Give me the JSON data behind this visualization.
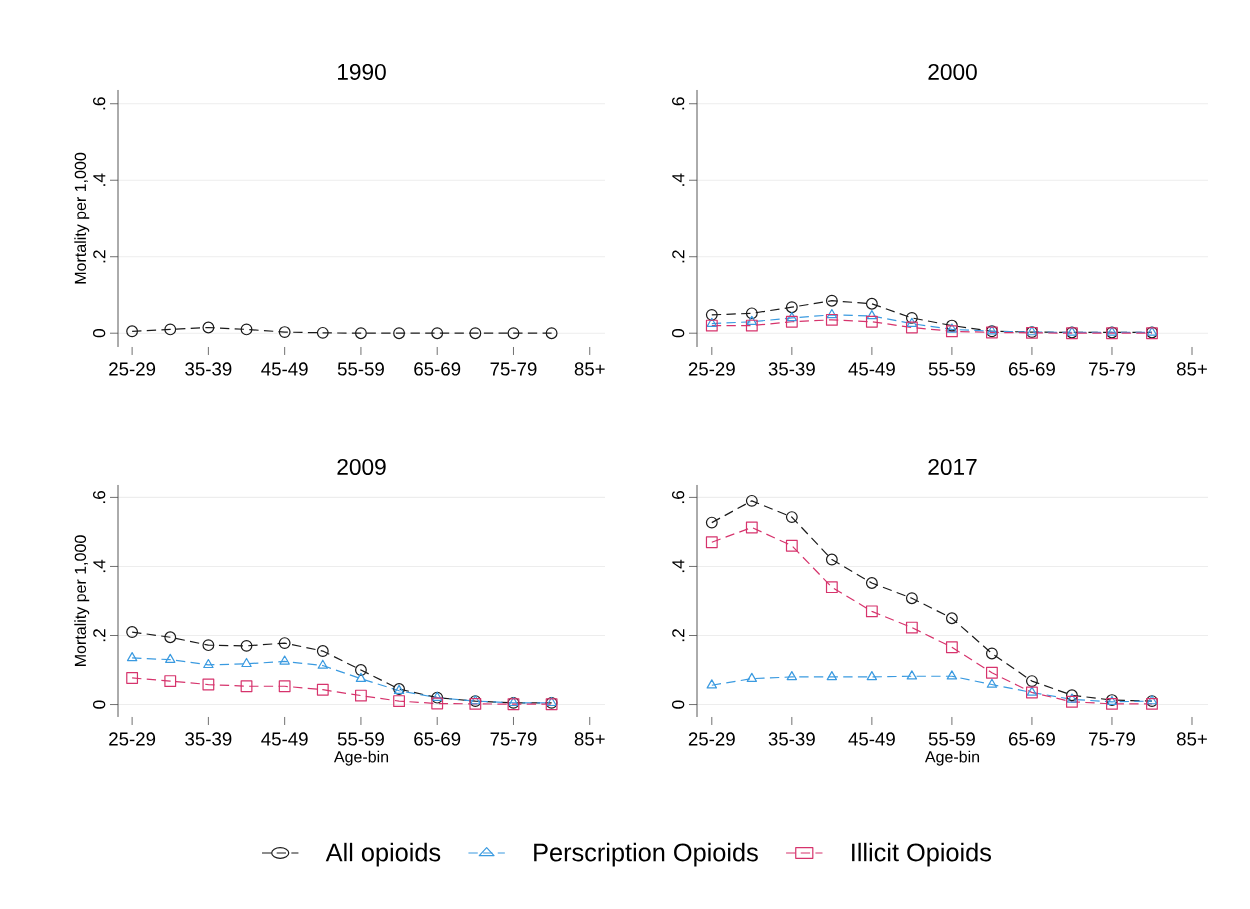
{
  "chart_data": [
    {
      "type": "line",
      "title": "1990",
      "ylabel": "Mortality per 1,000",
      "categories": [
        "25-29",
        null,
        "35-39",
        null,
        "45-49",
        null,
        "55-59",
        null,
        "65-69",
        null,
        "75-79",
        null,
        "85+"
      ],
      "ylim": [
        -0.036,
        0.636
      ],
      "yticks": [
        0,
        {
          "value": 0.2,
          "label": ".2"
        },
        {
          "value": 0.4,
          "label": ".4"
        },
        {
          "value": 0.6,
          "label": ".6"
        }
      ],
      "grid": "y",
      "line_style": "dashed",
      "series": [
        {
          "color": "#1a1a1a",
          "marker": "circle",
          "values": [
            0.005,
            0.01,
            0.015,
            0.01,
            0.003,
            0.001,
            0,
            0,
            0,
            0,
            0,
            0,
            null
          ]
        }
      ]
    },
    {
      "type": "line",
      "title": "2000",
      "categories": [
        "25-29",
        null,
        "35-39",
        null,
        "45-49",
        null,
        "55-59",
        null,
        "65-69",
        null,
        "75-79",
        null,
        "85+"
      ],
      "ylim": [
        -0.036,
        0.636
      ],
      "yticks": [
        0,
        {
          "value": 0.2,
          "label": ".2"
        },
        {
          "value": 0.4,
          "label": ".4"
        },
        {
          "value": 0.6,
          "label": ".6"
        }
      ],
      "grid": "y",
      "line_style": "dashed",
      "series": [
        {
          "color": "#1a1a1a",
          "marker": "circle",
          "values": [
            0.048,
            0.052,
            0.068,
            0.085,
            0.077,
            0.04,
            0.02,
            0.005,
            0.003,
            0.002,
            0.002,
            0.002,
            null
          ]
        },
        {
          "color": "#3a9ae0",
          "marker": "triangle",
          "values": [
            0.025,
            0.03,
            0.04,
            0.048,
            0.045,
            0.025,
            0.01,
            0.005,
            0.003,
            0.002,
            0.002,
            0.002,
            null
          ]
        },
        {
          "color": "#d6336c",
          "marker": "square",
          "values": [
            0.02,
            0.02,
            0.03,
            0.035,
            0.03,
            0.015,
            0.005,
            0.002,
            0.001,
            0,
            0,
            0,
            null
          ]
        }
      ]
    },
    {
      "type": "line",
      "title": "2009",
      "ylabel": "Mortality per 1,000",
      "xlabel": "Age-bin",
      "categories": [
        "25-29",
        null,
        "35-39",
        null,
        "45-49",
        null,
        "55-59",
        null,
        "65-69",
        null,
        "75-79",
        null,
        "85+"
      ],
      "ylim": [
        -0.036,
        0.636
      ],
      "yticks": [
        0,
        {
          "value": 0.2,
          "label": ".2"
        },
        {
          "value": 0.4,
          "label": ".4"
        },
        {
          "value": 0.6,
          "label": ".6"
        }
      ],
      "grid": "y",
      "line_style": "dashed",
      "series": [
        {
          "color": "#1a1a1a",
          "marker": "circle",
          "values": [
            0.21,
            0.195,
            0.172,
            0.17,
            0.178,
            0.155,
            0.1,
            0.045,
            0.02,
            0.01,
            0.005,
            0.005,
            null
          ]
        },
        {
          "color": "#3a9ae0",
          "marker": "triangle",
          "values": [
            0.135,
            0.13,
            0.115,
            0.118,
            0.125,
            0.113,
            0.075,
            0.04,
            0.02,
            0.01,
            0.005,
            0.005,
            null
          ]
        },
        {
          "color": "#d6336c",
          "marker": "square",
          "values": [
            0.077,
            0.068,
            0.058,
            0.053,
            0.053,
            0.043,
            0.026,
            0.01,
            0.003,
            0.002,
            0.001,
            0.001,
            null
          ]
        }
      ]
    },
    {
      "type": "line",
      "title": "2017",
      "xlabel": "Age-bin",
      "legend": "bottom",
      "categories": [
        "25-29",
        null,
        "35-39",
        null,
        "45-49",
        null,
        "55-59",
        null,
        "65-69",
        null,
        "75-79",
        null,
        "85+"
      ],
      "ylim": [
        -0.036,
        0.636
      ],
      "yticks": [
        0,
        {
          "value": 0.2,
          "label": ".2"
        },
        {
          "value": 0.4,
          "label": ".4"
        },
        {
          "value": 0.6,
          "label": ".6"
        }
      ],
      "grid": "y",
      "line_style": "dashed",
      "series": [
        {
          "name": "All opioids",
          "color": "#1a1a1a",
          "marker": "circle",
          "values": [
            0.527,
            0.59,
            0.543,
            0.42,
            0.352,
            0.308,
            0.25,
            0.148,
            0.068,
            0.027,
            0.013,
            0.01,
            null
          ]
        },
        {
          "name": "Perscription Opioids",
          "color": "#3a9ae0",
          "marker": "triangle",
          "values": [
            0.056,
            0.075,
            0.08,
            0.08,
            0.08,
            0.082,
            0.082,
            0.058,
            0.035,
            0.015,
            0.008,
            0.01,
            null
          ]
        },
        {
          "name": "Illicit Opioids",
          "color": "#d6336c",
          "marker": "square",
          "values": [
            0.47,
            0.513,
            0.46,
            0.34,
            0.27,
            0.223,
            0.166,
            0.092,
            0.035,
            0.008,
            0.002,
            0.002,
            null
          ]
        }
      ]
    }
  ]
}
